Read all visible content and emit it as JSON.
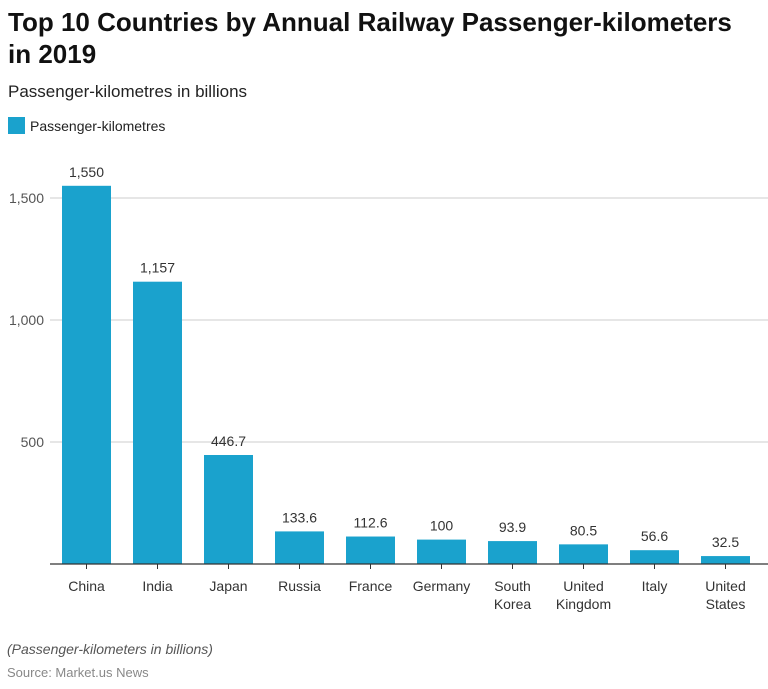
{
  "title": "Top 10 Countries by Annual Railway Passenger-kilometers in 2019",
  "subtitle": "Passenger-kilometres in billions",
  "note": "(Passenger-kilometers in billions)",
  "source": "Source: Market.us News",
  "colors": {
    "bar": "#1aa2cd",
    "grid": "#dddddd",
    "axis": "#333333"
  },
  "chart_data": {
    "type": "bar",
    "title": "Top 10 Countries by Annual Railway Passenger-kilometers in 2019",
    "ylabel": "",
    "xlabel": "",
    "ylim": [
      0,
      1550
    ],
    "yticks": [
      {
        "v": 500,
        "label": "500"
      },
      {
        "v": 1000,
        "label": "1,000"
      },
      {
        "v": 1500,
        "label": "1,500"
      }
    ],
    "grid": true,
    "legend": "top-left",
    "series": [
      {
        "name": "Passenger-kilometres",
        "values": [
          1550,
          1157,
          446.7,
          133.6,
          112.6,
          100,
          93.9,
          80.5,
          56.6,
          32.5
        ],
        "labels": [
          "1,550",
          "1,157",
          "446.7",
          "133.6",
          "112.6",
          "100",
          "93.9",
          "80.5",
          "56.6",
          "32.5"
        ]
      }
    ],
    "categories": [
      [
        "China"
      ],
      [
        "India"
      ],
      [
        "Japan"
      ],
      [
        "Russia"
      ],
      [
        "France"
      ],
      [
        "Germany"
      ],
      [
        "South",
        "Korea"
      ],
      [
        "United",
        "Kingdom"
      ],
      [
        "Italy"
      ],
      [
        "United",
        "States"
      ]
    ]
  }
}
